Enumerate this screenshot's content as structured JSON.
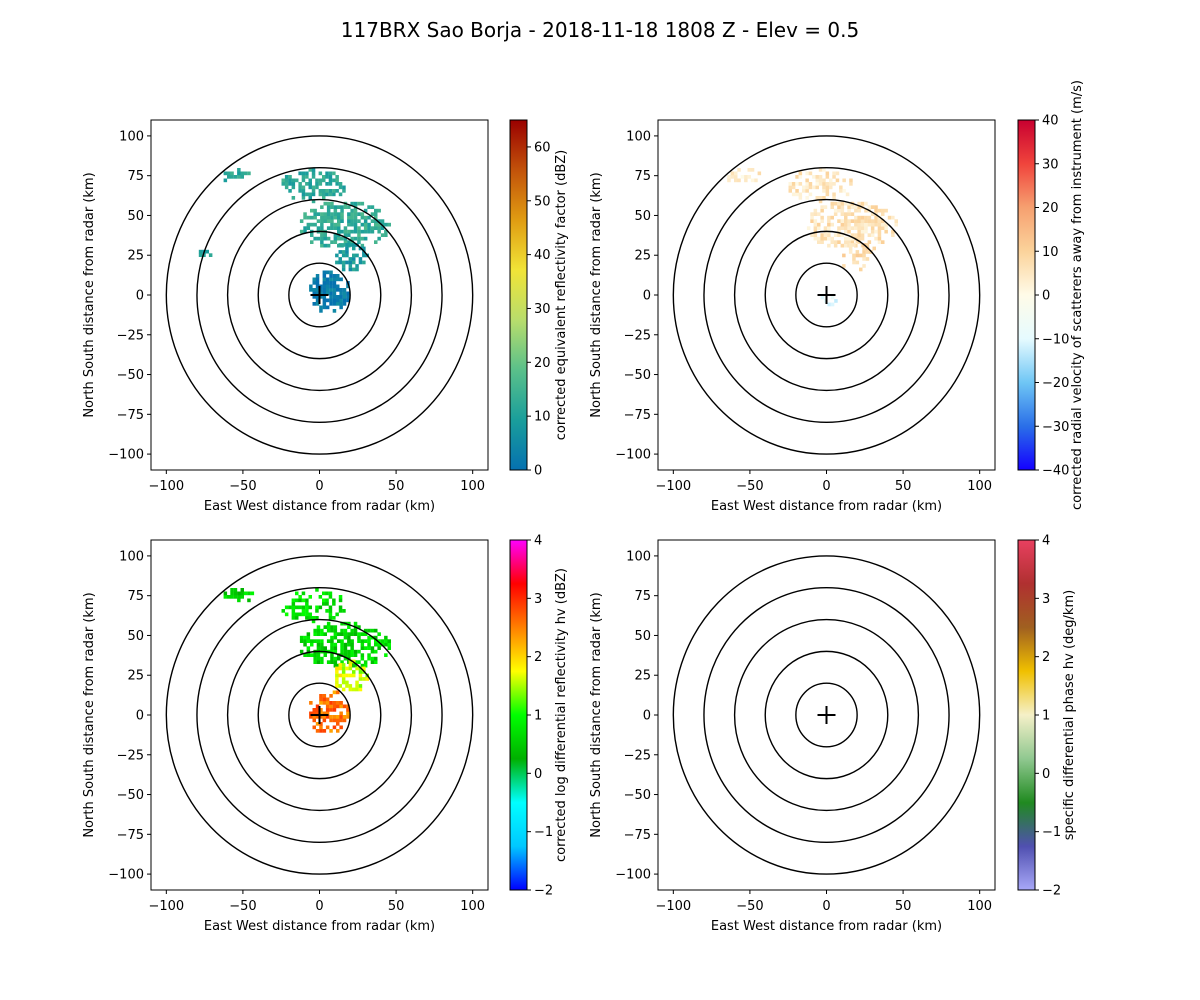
{
  "figure": {
    "title": "117BRX Sao Borja - 2018-11-18 1808 Z -  Elev = 0.5"
  },
  "chart_data": [
    {
      "type": "heatmap",
      "panel": "top-left",
      "xlabel": "East West distance from radar (km)",
      "ylabel": "North South distance from radar (km)",
      "xlim": [
        -110,
        110
      ],
      "ylim": [
        -110,
        110
      ],
      "xticks": [
        "−100",
        "−50",
        "0",
        "50",
        "100"
      ],
      "yticks": [
        "100",
        "75",
        "50",
        "25",
        "0",
        "−25",
        "−50",
        "−75",
        "−100"
      ],
      "range_rings_km": [
        20,
        40,
        60,
        80,
        100
      ],
      "colorbar": {
        "label": "corrected equivalent reflectivity factor (dBZ)",
        "min": 0,
        "max": 65,
        "ticks": [
          "0",
          "10",
          "20",
          "30",
          "40",
          "50",
          "60"
        ],
        "tick_values": [
          0,
          10,
          20,
          30,
          40,
          50,
          60
        ],
        "colors": [
          "#0571b0",
          "#1a9e9b",
          "#5ac08a",
          "#b8dd6c",
          "#f1e437",
          "#e09c12",
          "#c2520a",
          "#9a0000"
        ]
      },
      "echo_regions": [
        {
          "cx": 5,
          "cy": 3,
          "rx": 14,
          "ry": 14,
          "v": 2,
          "density": 0.75
        },
        {
          "cx": 15,
          "cy": 45,
          "rx": 30,
          "ry": 15,
          "v": 13,
          "density": 0.7
        },
        {
          "cx": -5,
          "cy": 70,
          "rx": 22,
          "ry": 10,
          "v": 12,
          "density": 0.55
        },
        {
          "cx": -55,
          "cy": 76,
          "rx": 12,
          "ry": 5,
          "v": 11,
          "density": 0.6
        },
        {
          "cx": 20,
          "cy": 25,
          "rx": 12,
          "ry": 10,
          "v": 9,
          "density": 0.6
        },
        {
          "cx": -75,
          "cy": 28,
          "rx": 6,
          "ry": 4,
          "v": 10,
          "density": 0.35
        }
      ]
    },
    {
      "type": "heatmap",
      "panel": "top-right",
      "xlabel": "East West distance from radar (km)",
      "ylabel": "North South distance from radar (km)",
      "xlim": [
        -110,
        110
      ],
      "ylim": [
        -110,
        110
      ],
      "xticks": [
        "−100",
        "−50",
        "0",
        "50",
        "100"
      ],
      "yticks": [
        "100",
        "75",
        "50",
        "25",
        "0",
        "−25",
        "−50",
        "−75",
        "−100"
      ],
      "range_rings_km": [
        20,
        40,
        60,
        80,
        100
      ],
      "colorbar": {
        "label": "corrected radial velocity of scatterers away from instrument (m/s)",
        "min": -40,
        "max": 40,
        "ticks": [
          "−40",
          "−30",
          "−20",
          "−10",
          "0",
          "10",
          "20",
          "30",
          "40"
        ],
        "tick_values": [
          -40,
          -30,
          -20,
          -10,
          0,
          10,
          20,
          30,
          40
        ],
        "colors": [
          "#1400ff",
          "#2a6fe8",
          "#6fc6f5",
          "#e6fbff",
          "#fffbe8",
          "#fbd39b",
          "#f6a070",
          "#f0443c",
          "#c80030"
        ]
      },
      "echo_regions": [
        {
          "cx": 15,
          "cy": 45,
          "rx": 30,
          "ry": 15,
          "v": 6,
          "density": 0.7
        },
        {
          "cx": -5,
          "cy": 70,
          "rx": 22,
          "ry": 10,
          "v": 5,
          "density": 0.5
        },
        {
          "cx": -55,
          "cy": 76,
          "rx": 12,
          "ry": 5,
          "v": 4,
          "density": 0.55
        },
        {
          "cx": 20,
          "cy": 25,
          "rx": 12,
          "ry": 10,
          "v": 8,
          "density": 0.45
        },
        {
          "cx": 0,
          "cy": -3,
          "rx": 6,
          "ry": 4,
          "v": -10,
          "density": 0.5
        }
      ]
    },
    {
      "type": "heatmap",
      "panel": "bottom-left",
      "xlabel": "East West distance from radar (km)",
      "ylabel": "North South distance from radar (km)",
      "xlim": [
        -110,
        110
      ],
      "ylim": [
        -110,
        110
      ],
      "xticks": [
        "−100",
        "−50",
        "0",
        "50",
        "100"
      ],
      "yticks": [
        "100",
        "75",
        "50",
        "25",
        "0",
        "−25",
        "−50",
        "−75",
        "−100"
      ],
      "range_rings_km": [
        20,
        40,
        60,
        80,
        100
      ],
      "colorbar": {
        "label": "corrected log differential reflectivity hv (dBZ)",
        "min": -2,
        "max": 4,
        "ticks": [
          "−2",
          "−1",
          "0",
          "1",
          "2",
          "3",
          "4"
        ],
        "tick_values": [
          -2,
          -1,
          0,
          1,
          2,
          3,
          4
        ],
        "colors": [
          "#0000ff",
          "#00c8ff",
          "#00ffff",
          "#00b000",
          "#00ff00",
          "#ffff00",
          "#ff8000",
          "#ff0000",
          "#ff00ff"
        ]
      },
      "echo_regions": [
        {
          "cx": 5,
          "cy": 3,
          "rx": 14,
          "ry": 14,
          "v": 2.6,
          "density": 0.6
        },
        {
          "cx": 15,
          "cy": 45,
          "rx": 30,
          "ry": 15,
          "v": 0.6,
          "density": 0.7
        },
        {
          "cx": -5,
          "cy": 70,
          "rx": 22,
          "ry": 10,
          "v": 0.7,
          "density": 0.55
        },
        {
          "cx": -55,
          "cy": 76,
          "rx": 12,
          "ry": 5,
          "v": 0.6,
          "density": 0.6
        },
        {
          "cx": 20,
          "cy": 25,
          "rx": 12,
          "ry": 10,
          "v": 1.6,
          "density": 0.6
        }
      ]
    },
    {
      "type": "heatmap",
      "panel": "bottom-right",
      "xlabel": "East West distance from radar (km)",
      "ylabel": "North South distance from radar (km)",
      "xlim": [
        -110,
        110
      ],
      "ylim": [
        -110,
        110
      ],
      "xticks": [
        "−100",
        "−50",
        "0",
        "50",
        "100"
      ],
      "yticks": [
        "100",
        "75",
        "50",
        "25",
        "0",
        "−25",
        "−50",
        "−75",
        "−100"
      ],
      "range_rings_km": [
        20,
        40,
        60,
        80,
        100
      ],
      "colorbar": {
        "label": "specific differential phase hv (deg/km)",
        "min": -2,
        "max": 4,
        "ticks": [
          "−2",
          "−1",
          "0",
          "1",
          "2",
          "3",
          "4"
        ],
        "tick_values": [
          -2,
          -1,
          0,
          1,
          2,
          3,
          4
        ],
        "colors": [
          "#a8a8f8",
          "#5050b0",
          "#208a20",
          "#90c890",
          "#f5f0c8",
          "#f0c000",
          "#a06020",
          "#b03030",
          "#e84060"
        ]
      },
      "echo_regions": []
    }
  ]
}
